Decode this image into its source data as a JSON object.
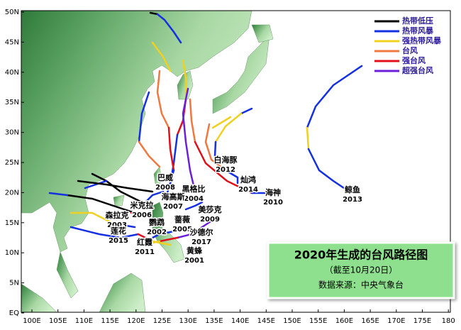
{
  "map": {
    "lat_labels": [
      "50N",
      "45N",
      "40N",
      "35N",
      "30N",
      "25N",
      "20N",
      "15N",
      "10N",
      "5N",
      "EQ"
    ],
    "lon_labels": [
      "100E",
      "105E",
      "110E",
      "115E",
      "120E",
      "125E",
      "130E",
      "135E",
      "140E",
      "145E",
      "150E",
      "155E",
      "160E",
      "165E",
      "170E",
      "175E",
      "180"
    ],
    "legend": [
      "热带低压",
      "热带风暴",
      "强热带风暴",
      "台风",
      "强台风",
      "超强台风"
    ],
    "typhoons": [
      {
        "name": "白海豚",
        "code": "2012"
      },
      {
        "name": "灿鸿",
        "code": "2014"
      },
      {
        "name": "海神",
        "code": "2010"
      },
      {
        "name": "鲸鱼",
        "code": "2013"
      },
      {
        "name": "巴威",
        "code": "2008"
      },
      {
        "name": "黑格比",
        "code": "2004"
      },
      {
        "name": "海高斯",
        "code": "2007"
      },
      {
        "name": "美莎克",
        "code": "2009"
      },
      {
        "name": "米克拉",
        "code": "2006"
      },
      {
        "name": "森拉克",
        "code": "2003"
      },
      {
        "name": "鹦鹉",
        "code": "2002"
      },
      {
        "name": "蔷薇",
        "code": "2005"
      },
      {
        "name": "莲花",
        "code": "2015"
      },
      {
        "name": "沙德尔",
        "code": "2017"
      },
      {
        "name": "红霞",
        "code": "2011"
      },
      {
        "name": "黄蜂",
        "code": "2001"
      }
    ]
  },
  "title_box": {
    "title": "2020年生成的台风路径图",
    "subtitle": "（截至10月20日）",
    "source": "数据来源：中央气象台"
  }
}
